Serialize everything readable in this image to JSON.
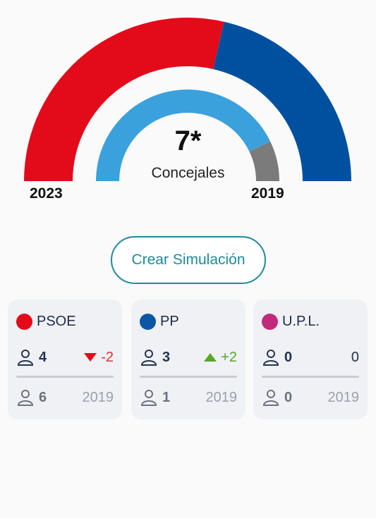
{
  "chart_data": {
    "type": "donut",
    "outer_ring": {
      "label": "2023",
      "series": [
        {
          "name": "PSOE",
          "value": 4,
          "color": "#e30a1a"
        },
        {
          "name": "PP",
          "value": 3,
          "color": "#0050a0"
        }
      ]
    },
    "inner_ring": {
      "label": "2019",
      "series": [
        {
          "name": "PSOE",
          "value": 6,
          "color": "#3ba1dd"
        },
        {
          "name": "PP",
          "value": 1,
          "color": "#7b7b7b"
        }
      ]
    }
  },
  "center": {
    "seats": "7*",
    "label": "Concejales"
  },
  "labels": {
    "left_year": "2023",
    "right_year": "2019"
  },
  "button": {
    "label": "Crear Simulación"
  },
  "cards": [
    {
      "party": "PSOE",
      "color": "#e30a1a",
      "seats_2023": "4",
      "delta": "-2",
      "delta_dir": "down",
      "delta_color": "#e03030",
      "seats_2019": "6",
      "year": "2019"
    },
    {
      "party": "PP",
      "color": "#0c56a6",
      "seats_2023": "3",
      "delta": "+2",
      "delta_dir": "up",
      "delta_color": "#56a82a",
      "seats_2019": "1",
      "year": "2019"
    },
    {
      "party": "U.P.L.",
      "color": "#c22a7a",
      "seats_2023": "0",
      "delta": "0",
      "delta_dir": "none",
      "delta_color": "#253252",
      "seats_2019": "0",
      "year": "2019"
    }
  ]
}
